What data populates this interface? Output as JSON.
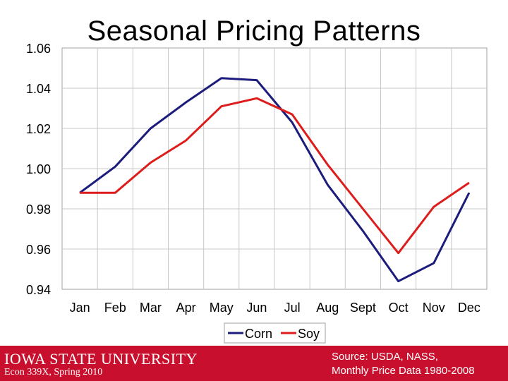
{
  "slide": {
    "title": "Seasonal Pricing Patterns",
    "logo_text": "Iowa State University",
    "course": "Econ 339X, Spring 2010",
    "source_line1": "Source: USDA, NASS,",
    "source_line2": "Monthly Price Data 1980-2008"
  },
  "colors": {
    "corn": "#1c1c7c",
    "soy": "#dd1c1c",
    "footer": "#c8102e",
    "grid": "#c8c8c8"
  },
  "chart_data": {
    "type": "line",
    "title": "Seasonal Pricing Patterns",
    "xlabel": "",
    "ylabel": "",
    "categories": [
      "Jan",
      "Feb",
      "Mar",
      "Apr",
      "May",
      "Jun",
      "Jul",
      "Aug",
      "Sept",
      "Oct",
      "Nov",
      "Dec"
    ],
    "ylim": [
      0.94,
      1.06
    ],
    "yticks": [
      0.94,
      0.96,
      0.98,
      1.0,
      1.02,
      1.04,
      1.06
    ],
    "ytick_labels": [
      "0.94",
      "0.96",
      "0.98",
      "1.00",
      "1.02",
      "1.04",
      "1.06"
    ],
    "grid": true,
    "legend": "bottom",
    "series": [
      {
        "name": "Corn",
        "values": [
          0.988,
          1.001,
          1.02,
          1.033,
          1.045,
          1.044,
          1.023,
          0.992,
          0.969,
          0.944,
          0.953,
          0.988
        ]
      },
      {
        "name": "Soy",
        "values": [
          0.988,
          0.988,
          1.003,
          1.014,
          1.031,
          1.035,
          1.027,
          1.002,
          0.98,
          0.958,
          0.981,
          0.993
        ]
      }
    ]
  }
}
